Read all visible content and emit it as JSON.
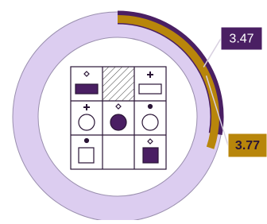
{
  "chart_data": {
    "type": "radial-bar",
    "series": [
      {
        "color": "#4a1f63",
        "label_color": "#ffffff",
        "values": [
          3.47
        ]
      },
      {
        "color": "#b8860b",
        "label_color": "#2a1536",
        "values": [
          3.77
        ]
      }
    ],
    "ylim": [
      0,
      12.5
    ],
    "track_color": "#dccdf0"
  }
}
